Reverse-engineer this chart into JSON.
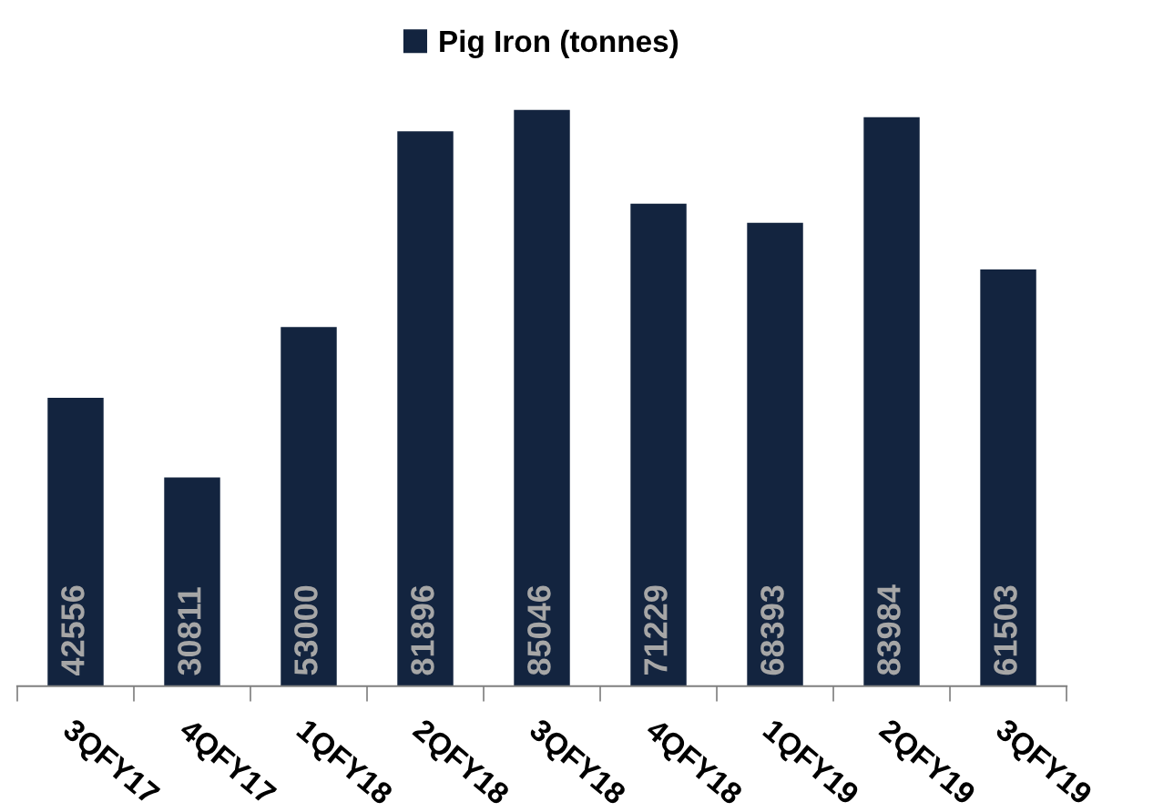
{
  "chart_data": {
    "type": "bar",
    "categories": [
      "3QFY17",
      "4QFY17",
      "1QFY18",
      "2QFY18",
      "3QFY18",
      "4QFY18",
      "1QFY19",
      "2QFY19",
      "3QFY19"
    ],
    "series": [
      {
        "name": "Pig Iron (tonnes)",
        "color": "#13243f",
        "values": [
          42556,
          30811,
          53000,
          81896,
          85046,
          71229,
          68393,
          83984,
          61503
        ]
      }
    ],
    "data_labels": true,
    "legend": "top",
    "tick_labels": "x"
  }
}
